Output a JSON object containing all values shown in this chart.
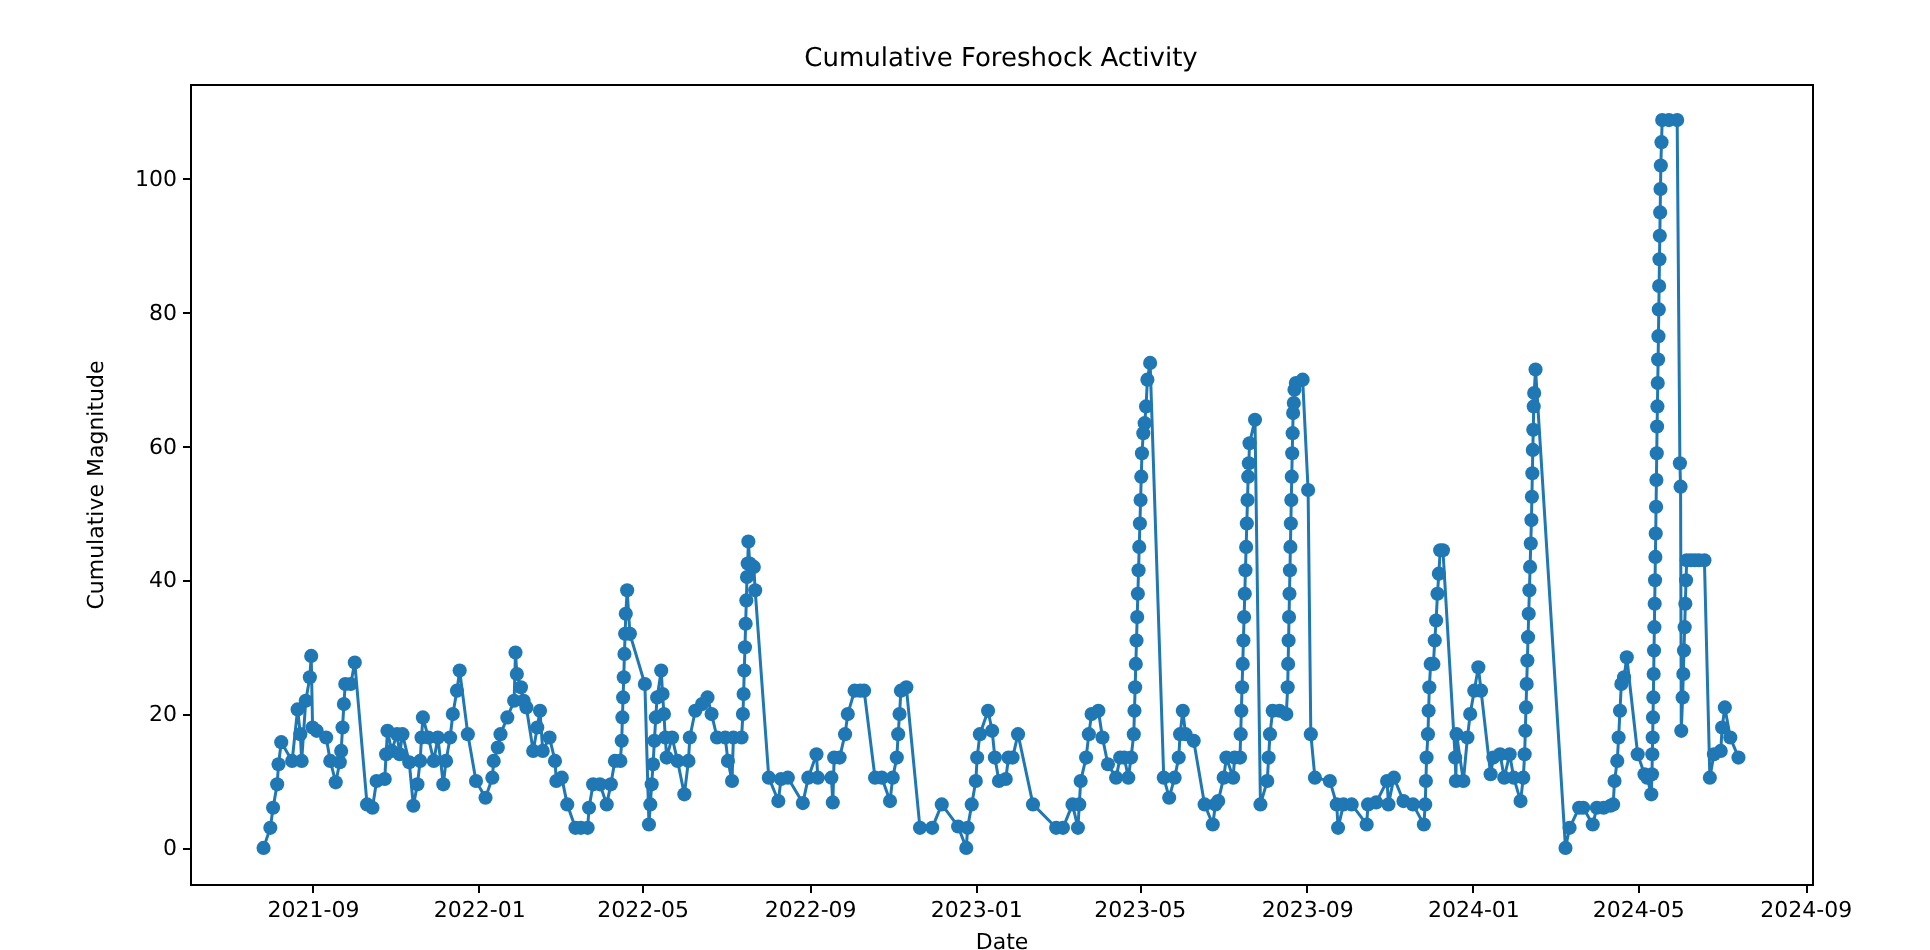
{
  "chart_data": {
    "type": "line",
    "title": "Cumulative Foreshock Activity",
    "xlabel": "Date",
    "ylabel": "Cumulative Magnitude",
    "marker": "circle",
    "line_style": "solid",
    "xlim": [
      "2021-06-03",
      "2024-09-06"
    ],
    "xticks": [
      "2021-09",
      "2022-01",
      "2022-05",
      "2022-09",
      "2023-01",
      "2023-05",
      "2023-09",
      "2024-01",
      "2024-05",
      "2024-09"
    ],
    "ylim": [
      -5.4,
      114.2
    ],
    "yticks": [
      0,
      20,
      40,
      60,
      80,
      100
    ],
    "x": [
      "2021-07-27",
      "2021-08-01",
      "2021-08-03",
      "2021-08-06",
      "2021-08-07",
      "2021-08-09",
      "2021-08-17",
      "2021-08-21",
      "2021-08-23",
      "2021-08-24",
      "2021-08-27",
      "2021-08-30",
      "2021-08-31",
      "2021-09-01",
      "2021-09-04",
      "2021-09-11",
      "2021-09-14",
      "2021-09-18",
      "2021-09-21",
      "2021-09-22",
      "2021-09-23",
      "2021-09-24",
      "2021-09-25",
      "2021-09-29",
      "2021-10-02",
      "2021-10-11",
      "2021-10-15",
      "2021-10-18",
      "2021-10-24",
      "2021-10-25",
      "2021-10-26",
      "2021-10-29",
      "2021-11-02",
      "2021-11-04",
      "2021-11-06",
      "2021-11-11",
      "2021-11-14",
      "2021-11-17",
      "2021-11-19",
      "2021-11-20",
      "2021-11-21",
      "2021-11-25",
      "2021-11-29",
      "2021-12-02",
      "2021-12-06",
      "2021-12-08",
      "2021-12-11",
      "2021-12-13",
      "2021-12-16",
      "2021-12-18",
      "2021-12-24",
      "2021-12-30",
      "2022-01-06",
      "2022-01-11",
      "2022-01-12",
      "2022-01-15",
      "2022-01-17",
      "2022-01-22",
      "2022-01-27",
      "2022-01-28",
      "2022-01-29",
      "2022-02-01",
      "2022-02-03",
      "2022-02-05",
      "2022-02-10",
      "2022-02-13",
      "2022-02-15",
      "2022-02-17",
      "2022-02-22",
      "2022-02-26",
      "2022-02-27",
      "2022-03-03",
      "2022-03-07",
      "2022-03-13",
      "2022-03-17",
      "2022-03-22",
      "2022-03-23",
      "2022-03-26",
      "2022-03-31",
      "2022-04-05",
      "2022-04-08",
      "2022-04-11",
      "2022-04-15",
      "2022-04-16",
      "2022-04-16T12:00",
      "2022-04-17",
      "2022-04-17T12:00",
      "2022-04-18",
      "2022-04-18T12:00",
      "2022-04-19",
      "2022-04-20",
      "2022-04-22",
      "2022-05-03",
      "2022-05-06",
      "2022-05-07",
      "2022-05-08",
      "2022-05-09",
      "2022-05-10",
      "2022-05-11",
      "2022-05-12",
      "2022-05-15",
      "2022-05-16",
      "2022-05-17",
      "2022-05-18",
      "2022-05-19",
      "2022-05-23",
      "2022-05-27",
      "2022-06-01",
      "2022-06-04",
      "2022-06-05",
      "2022-06-09",
      "2022-06-14",
      "2022-06-18",
      "2022-06-21",
      "2022-06-25",
      "2022-07-01",
      "2022-07-03",
      "2022-07-06",
      "2022-07-07",
      "2022-07-13",
      "2022-07-14",
      "2022-07-14T12:00",
      "2022-07-15",
      "2022-07-15T12:00",
      "2022-07-16",
      "2022-07-16T12:00",
      "2022-07-17",
      "2022-07-17T12:00",
      "2022-07-18",
      "2022-07-19",
      "2022-07-22",
      "2022-07-23",
      "2022-08-02",
      "2022-08-09",
      "2022-08-11",
      "2022-08-16",
      "2022-08-27",
      "2022-08-31",
      "2022-09-06",
      "2022-09-07",
      "2022-09-17",
      "2022-09-18",
      "2022-09-19",
      "2022-09-23",
      "2022-09-27",
      "2022-09-29",
      "2022-10-04",
      "2022-10-08",
      "2022-10-11",
      "2022-10-19",
      "2022-10-24",
      "2022-10-30",
      "2022-11-01",
      "2022-11-04",
      "2022-11-05",
      "2022-11-06",
      "2022-11-07",
      "2022-11-11",
      "2022-11-21",
      "2022-11-30",
      "2022-12-07",
      "2022-12-19",
      "2022-12-25",
      "2022-12-26",
      "2022-12-29",
      "2023-01-01",
      "2023-01-02",
      "2023-01-04",
      "2023-01-10",
      "2023-01-13",
      "2023-01-15",
      "2023-01-18",
      "2023-01-23",
      "2023-01-25",
      "2023-01-28",
      "2023-02-01",
      "2023-02-12",
      "2023-03-01",
      "2023-03-06",
      "2023-03-13",
      "2023-03-17",
      "2023-03-18",
      "2023-03-19",
      "2023-03-23",
      "2023-03-25",
      "2023-03-27",
      "2023-04-01",
      "2023-04-04",
      "2023-04-08",
      "2023-04-14",
      "2023-04-17",
      "2023-04-20",
      "2023-04-23",
      "2023-04-25",
      "2023-04-27",
      "2023-04-27T12:00",
      "2023-04-28",
      "2023-04-28T12:00",
      "2023-04-29",
      "2023-04-29T12:00",
      "2023-04-30",
      "2023-04-30T12:00",
      "2023-05-01",
      "2023-05-01T12:00",
      "2023-05-02",
      "2023-05-02T12:00",
      "2023-05-03",
      "2023-05-04",
      "2023-05-05",
      "2023-05-06",
      "2023-05-07",
      "2023-05-09",
      "2023-05-19",
      "2023-05-23",
      "2023-05-27",
      "2023-05-30",
      "2023-05-31",
      "2023-06-02",
      "2023-06-04",
      "2023-06-10",
      "2023-06-18",
      "2023-06-24",
      "2023-06-26",
      "2023-06-28",
      "2023-07-02",
      "2023-07-04",
      "2023-07-09",
      "2023-07-10",
      "2023-07-14",
      "2023-07-14T12:00",
      "2023-07-15",
      "2023-07-15T12:00",
      "2023-07-16",
      "2023-07-16T12:00",
      "2023-07-17",
      "2023-07-17T12:00",
      "2023-07-18",
      "2023-07-18T12:00",
      "2023-07-19",
      "2023-07-19T12:00",
      "2023-07-20",
      "2023-07-20T12:00",
      "2023-07-21",
      "2023-07-25",
      "2023-07-29",
      "2023-08-03",
      "2023-08-04",
      "2023-08-05",
      "2023-08-07",
      "2023-08-12",
      "2023-08-17",
      "2023-08-18",
      "2023-08-18T08:00",
      "2023-08-18T16:00",
      "2023-08-19",
      "2023-08-19T08:00",
      "2023-08-19T16:00",
      "2023-08-20",
      "2023-08-20T08:00",
      "2023-08-20T16:00",
      "2023-08-21",
      "2023-08-21T08:00",
      "2023-08-21T16:00",
      "2023-08-22",
      "2023-08-22T12:00",
      "2023-08-23",
      "2023-08-24",
      "2023-08-29",
      "2023-09-02",
      "2023-09-04",
      "2023-09-07",
      "2023-09-18",
      "2023-09-23",
      "2023-09-24",
      "2023-09-28",
      "2023-10-04",
      "2023-10-15",
      "2023-10-16",
      "2023-10-22",
      "2023-10-30",
      "2023-10-31",
      "2023-11-04",
      "2023-11-11",
      "2023-11-18",
      "2023-11-26",
      "2023-11-27",
      "2023-11-27T12:00",
      "2023-11-28",
      "2023-11-29",
      "2023-11-29T12:00",
      "2023-11-30",
      "2023-12-01",
      "2023-12-03",
      "2023-12-04",
      "2023-12-05",
      "2023-12-06",
      "2023-12-07",
      "2023-12-08",
      "2023-12-10",
      "2023-12-19",
      "2023-12-19T12:00",
      "2023-12-20",
      "2023-12-25",
      "2023-12-28",
      "2023-12-30",
      "2024-01-02",
      "2024-01-05",
      "2024-01-07",
      "2024-01-14",
      "2024-01-16",
      "2024-01-21",
      "2024-01-24",
      "2024-01-28",
      "2024-01-31",
      "2024-02-05",
      "2024-02-07",
      "2024-02-08",
      "2024-02-08T12:00",
      "2024-02-09",
      "2024-02-09T12:00",
      "2024-02-10",
      "2024-02-10T12:00",
      "2024-02-11",
      "2024-02-11T12:00",
      "2024-02-12",
      "2024-02-12T12:00",
      "2024-02-13",
      "2024-02-13T08:00",
      "2024-02-13T16:00",
      "2024-02-14",
      "2024-02-14T08:00",
      "2024-02-14T16:00",
      "2024-02-15",
      "2024-02-16",
      "2024-03-09",
      "2024-03-12",
      "2024-03-19",
      "2024-03-22",
      "2024-03-29",
      "2024-04-01",
      "2024-04-06",
      "2024-04-11",
      "2024-04-13",
      "2024-04-14",
      "2024-04-16",
      "2024-04-17",
      "2024-04-18",
      "2024-04-19",
      "2024-04-21",
      "2024-04-23",
      "2024-05-01",
      "2024-05-06",
      "2024-05-08",
      "2024-05-11",
      "2024-05-11T12:00",
      "2024-05-11T18:00",
      "2024-05-12",
      "2024-05-12T06:00",
      "2024-05-12T12:00",
      "2024-05-12T18:00",
      "2024-05-13",
      "2024-05-13T06:00",
      "2024-05-13T12:00",
      "2024-05-13T18:00",
      "2024-05-14",
      "2024-05-14T06:00",
      "2024-05-14T12:00",
      "2024-05-14T18:00",
      "2024-05-15",
      "2024-05-15T06:00",
      "2024-05-15T12:00",
      "2024-05-15T18:00",
      "2024-05-16",
      "2024-05-16T06:00",
      "2024-05-16T12:00",
      "2024-05-16T18:00",
      "2024-05-17",
      "2024-05-17T06:00",
      "2024-05-17T12:00",
      "2024-05-17T18:00",
      "2024-05-18",
      "2024-05-18T12:00",
      "2024-05-19",
      "2024-05-24",
      "2024-05-30",
      "2024-06-01",
      "2024-06-01T12:00",
      "2024-06-02",
      "2024-06-03",
      "2024-06-03T12:00",
      "2024-06-04",
      "2024-06-04T12:00",
      "2024-06-05",
      "2024-06-05T12:00",
      "2024-06-06",
      "2024-06-09",
      "2024-06-12",
      "2024-06-15",
      "2024-06-19",
      "2024-06-23",
      "2024-06-26",
      "2024-07-01",
      "2024-07-02",
      "2024-07-04",
      "2024-07-08",
      "2024-07-14"
    ],
    "series": [
      {
        "color": "#1f77b4",
        "values": [
          0,
          3,
          6,
          9.5,
          12.5,
          15.8,
          13,
          20.7,
          17,
          13,
          22,
          25.5,
          28.7,
          18,
          17.5,
          16.5,
          13,
          9.8,
          12.8,
          14.5,
          18,
          21.5,
          24.5,
          24.5,
          27.7,
          6.5,
          6,
          10,
          10.3,
          14,
          17.5,
          14.5,
          17,
          14,
          17,
          12.8,
          6.3,
          9.5,
          13,
          16.5,
          19.5,
          16.5,
          13,
          16.5,
          9.5,
          13,
          16.5,
          20,
          23.5,
          26.5,
          17,
          10,
          7.5,
          10.5,
          13,
          15,
          17,
          19.5,
          22,
          29.2,
          26,
          24,
          22,
          21,
          14.5,
          18,
          20.5,
          14.5,
          16.5,
          13,
          10,
          10.5,
          6.5,
          3,
          3,
          3,
          6,
          9.5,
          9.5,
          6.5,
          9.5,
          13,
          13,
          16,
          19.5,
          22.5,
          25.5,
          29,
          32,
          35,
          38.5,
          32,
          24.5,
          3.5,
          6.5,
          9.5,
          12.5,
          16,
          19.5,
          22.5,
          26.5,
          23,
          20,
          16.5,
          13.5,
          16.5,
          13,
          8,
          13,
          16.5,
          20.5,
          21.5,
          22.5,
          20,
          16.5,
          16.5,
          13,
          10,
          16.5,
          16.5,
          20,
          23,
          26.5,
          30,
          33.5,
          37,
          40.5,
          42.5,
          45.8,
          42.5,
          42,
          38.5,
          10.5,
          7,
          10.3,
          10.5,
          6.7,
          10.5,
          14,
          10.5,
          10.5,
          6.8,
          13.5,
          13.5,
          17,
          20,
          23.5,
          23.5,
          23.5,
          10.5,
          10.5,
          7,
          10.5,
          13.5,
          17,
          20,
          23.5,
          24,
          3,
          3,
          6.5,
          3.2,
          0,
          3,
          6.5,
          10,
          13.5,
          17,
          20.5,
          17.5,
          13.5,
          10,
          10.3,
          13.5,
          13.5,
          17,
          6.5,
          3,
          3,
          6.5,
          3,
          6.5,
          10,
          13.5,
          17,
          20,
          20.5,
          16.5,
          12.5,
          10.5,
          13.5,
          13.5,
          10.5,
          13.5,
          17,
          20.5,
          24,
          27.5,
          31,
          34.5,
          38,
          41.5,
          45,
          48.5,
          52,
          55.5,
          59,
          62,
          63.5,
          66,
          70,
          72.5,
          10.5,
          7.5,
          10.5,
          13.5,
          17,
          20.5,
          17,
          16,
          6.5,
          3.5,
          6.5,
          7,
          10.5,
          13.5,
          10.5,
          13.5,
          13.5,
          17,
          20.5,
          24,
          27.5,
          31,
          34.5,
          38,
          41.5,
          45,
          48.5,
          52,
          55.5,
          57.5,
          60.5,
          64,
          6.5,
          10,
          13.5,
          17,
          20.5,
          20.5,
          20,
          24,
          27.5,
          31,
          34.5,
          38,
          41.5,
          45,
          48.5,
          52,
          55.5,
          59,
          62,
          65,
          66.5,
          68.5,
          69.5,
          70,
          53.5,
          17,
          10.5,
          10,
          6.5,
          3,
          6.5,
          6.5,
          3.5,
          6.5,
          6.8,
          10,
          6.5,
          10.5,
          7,
          6.5,
          3.5,
          6.5,
          10,
          13.5,
          17,
          20.5,
          24,
          27.5,
          27.5,
          31,
          34,
          38,
          41,
          44.5,
          44.5,
          13.5,
          10,
          17,
          10,
          16.5,
          20,
          23.5,
          27,
          23.5,
          11,
          13.5,
          14,
          10.5,
          14,
          10.5,
          7,
          10.5,
          14,
          17.5,
          21,
          24.5,
          28,
          31.5,
          35,
          38.5,
          42,
          45.5,
          49,
          52.5,
          56,
          59.5,
          62.5,
          66,
          68,
          71.5,
          0,
          3,
          6,
          6,
          3.5,
          6,
          6,
          6.3,
          6.5,
          10,
          13,
          16.5,
          20.5,
          24.5,
          25.5,
          28.5,
          14,
          11,
          10.5,
          8,
          11,
          14,
          16.5,
          19.5,
          22.5,
          26,
          29.5,
          33,
          36.5,
          40,
          43.5,
          47,
          51,
          55,
          59,
          63,
          66,
          69.5,
          73,
          76.5,
          80.5,
          84,
          88,
          91.5,
          95,
          98.5,
          102,
          105.5,
          108.8,
          108.8,
          108.8,
          57.5,
          54,
          17.5,
          22.5,
          26,
          29.5,
          33,
          36.5,
          40,
          43,
          43,
          43,
          43,
          43,
          10.5,
          14,
          14.5,
          18,
          21,
          16.5,
          13.5
        ]
      }
    ]
  }
}
